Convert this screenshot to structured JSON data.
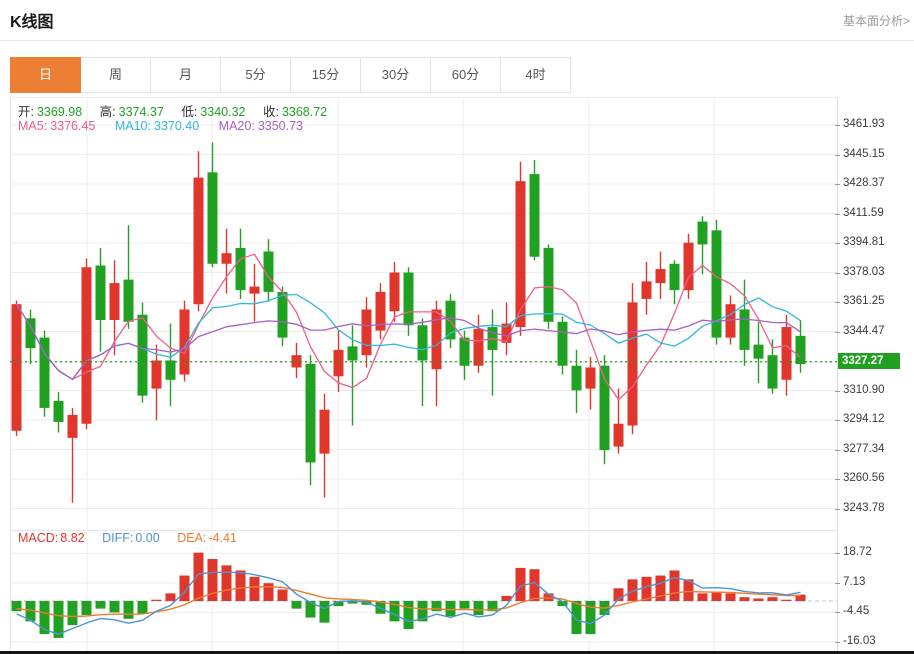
{
  "page": {
    "title": "K线图",
    "analysis_link": "基本面分析>"
  },
  "tabs": {
    "items": [
      "日",
      "周",
      "月",
      "5分",
      "15分",
      "30分",
      "60分",
      "4时"
    ],
    "selected": 0
  },
  "ohlc_header": {
    "open_label": "开:",
    "open": "3369.98",
    "high_label": "高:",
    "high": "3374.37",
    "low_label": "低:",
    "low": "3340.32",
    "close_label": "收:",
    "close": "3368.72"
  },
  "ma_header": {
    "ma5_label": "MA5:",
    "ma5": "3376.45",
    "ma10_label": "MA10:",
    "ma10": "3370.40",
    "ma20_label": "MA20:",
    "ma20": "3350.73"
  },
  "macd_header": {
    "macd_label": "MACD:",
    "macd": "8.82",
    "diff_label": "DIFF:",
    "diff": "0.00",
    "dea_label": "DEA:",
    "dea": "-4.41"
  },
  "price_axis": {
    "ticks": [
      "3461.93",
      "3445.15",
      "3428.37",
      "3411.59",
      "3394.81",
      "3378.03",
      "3361.25",
      "3344.47",
      "3327.27",
      "3310.90",
      "3294.12",
      "3277.34",
      "3260.56",
      "3243.78"
    ],
    "current_price": "3327.27"
  },
  "macd_axis": {
    "ticks": [
      "18.72",
      "7.13",
      "-4.45",
      "-16.03"
    ]
  },
  "colors": {
    "accent_orange": "#ec7f33",
    "up_red": "#e1362c",
    "down_green": "#21a121",
    "ma5_pink": "#ee5d8c",
    "ma10_cyan": "#31b8db",
    "ma20_purple": "#a95fc2",
    "diff_blue": "#4f93d5",
    "dea_orange": "#ee7c2f",
    "ohlc_value_green": "#21a121",
    "grid": "#ededed",
    "link_gray": "#9a9a9a"
  },
  "chart_data": {
    "type": "candlestick_with_macd",
    "title": "K线图",
    "period_selected": "日",
    "candle_format": "[open, high, low, close]",
    "price_axis_ticks": [
      3461.93,
      3445.15,
      3428.37,
      3411.59,
      3394.81,
      3378.03,
      3361.25,
      3344.47,
      3327.27,
      3310.9,
      3294.12,
      3277.34,
      3260.56,
      3243.78
    ],
    "current_price": 3327.27,
    "ma_periods": [
      5,
      10,
      20
    ],
    "candles": [
      [
        3288,
        3362,
        3285,
        3360
      ],
      [
        3352,
        3357,
        3326,
        3335
      ],
      [
        3341,
        3345,
        3296,
        3301
      ],
      [
        3305,
        3310,
        3287,
        3293
      ],
      [
        3284,
        3301,
        3247,
        3297
      ],
      [
        3292,
        3386,
        3289,
        3381
      ],
      [
        3382,
        3392,
        3333,
        3351
      ],
      [
        3351,
        3385,
        3331,
        3372
      ],
      [
        3374,
        3405,
        3346,
        3350
      ],
      [
        3354,
        3361,
        3304,
        3308
      ],
      [
        3312,
        3337,
        3294,
        3328
      ],
      [
        3328,
        3349,
        3302,
        3317
      ],
      [
        3320,
        3362,
        3316,
        3357
      ],
      [
        3360,
        3447,
        3356,
        3432
      ],
      [
        3435,
        3452,
        3381,
        3383
      ],
      [
        3383,
        3403,
        3366,
        3389
      ],
      [
        3392,
        3403,
        3363,
        3368
      ],
      [
        3366,
        3383,
        3350,
        3370
      ],
      [
        3390,
        3397,
        3362,
        3367
      ],
      [
        3367,
        3370,
        3336,
        3341
      ],
      [
        3324,
        3338,
        3318,
        3331
      ],
      [
        3326,
        3331,
        3257,
        3270
      ],
      [
        3275,
        3309,
        3250,
        3300
      ],
      [
        3319,
        3345,
        3310,
        3334
      ],
      [
        3336,
        3348,
        3291,
        3328
      ],
      [
        3331,
        3364,
        3324,
        3357
      ],
      [
        3345,
        3372,
        3340,
        3367
      ],
      [
        3356,
        3384,
        3350,
        3378
      ],
      [
        3378,
        3381,
        3342,
        3348
      ],
      [
        3348,
        3352,
        3302,
        3328
      ],
      [
        3323,
        3362,
        3302,
        3357
      ],
      [
        3362,
        3366,
        3335,
        3340
      ],
      [
        3341,
        3345,
        3317,
        3325
      ],
      [
        3325,
        3354,
        3321,
        3346
      ],
      [
        3347,
        3357,
        3308,
        3334
      ],
      [
        3338,
        3361,
        3331,
        3349
      ],
      [
        3347,
        3441,
        3342,
        3430
      ],
      [
        3434,
        3442,
        3385,
        3387
      ],
      [
        3392,
        3394,
        3346,
        3350
      ],
      [
        3350,
        3353,
        3320,
        3325
      ],
      [
        3325,
        3334,
        3298,
        3311
      ],
      [
        3312,
        3330,
        3300,
        3324
      ],
      [
        3325,
        3331,
        3269,
        3277
      ],
      [
        3279,
        3312,
        3275,
        3292
      ],
      [
        3291,
        3372,
        3286,
        3361
      ],
      [
        3363,
        3384,
        3354,
        3373
      ],
      [
        3372,
        3390,
        3363,
        3380
      ],
      [
        3383,
        3385,
        3360,
        3368
      ],
      [
        3368,
        3400,
        3363,
        3395
      ],
      [
        3407,
        3410,
        3377,
        3394
      ],
      [
        3402,
        3408,
        3337,
        3341
      ],
      [
        3341,
        3365,
        3337,
        3360
      ],
      [
        3357,
        3374,
        3325,
        3334
      ],
      [
        3337,
        3350,
        3315,
        3329
      ],
      [
        3331,
        3340,
        3309,
        3312
      ],
      [
        3317,
        3354,
        3308,
        3347
      ],
      [
        3342,
        3351,
        3321,
        3326
      ]
    ],
    "macd_axis_ticks": [
      18.72,
      7.13,
      -4.45,
      -16.03
    ],
    "macd_histogram": [
      -4,
      -8,
      -13,
      -14.5,
      -9.5,
      -5.5,
      -3,
      -4.5,
      -7,
      -5,
      0.5,
      3,
      10,
      19,
      16.5,
      14,
      12,
      9.5,
      7,
      4.5,
      -3,
      -6.5,
      -8.5,
      -2,
      -1,
      -1.5,
      -5,
      -8,
      -11,
      -8,
      -4,
      -6,
      -3,
      -5.5,
      -4,
      2,
      13,
      12.5,
      3,
      -2,
      -13,
      -13,
      -5.5,
      5,
      8.5,
      9.5,
      10,
      12,
      8.5,
      3,
      3.5,
      3,
      1.5,
      1,
      1.5,
      0.5,
      2.5
    ],
    "macd_values": {
      "macd": 8.82,
      "diff": 0.0,
      "dea": -4.41
    },
    "ohlc_display": {
      "open": 3369.98,
      "high": 3374.37,
      "low": 3340.32,
      "close": 3368.72
    },
    "ma_display": {
      "ma5": 3376.45,
      "ma10": 3370.4,
      "ma20": 3350.73
    }
  }
}
